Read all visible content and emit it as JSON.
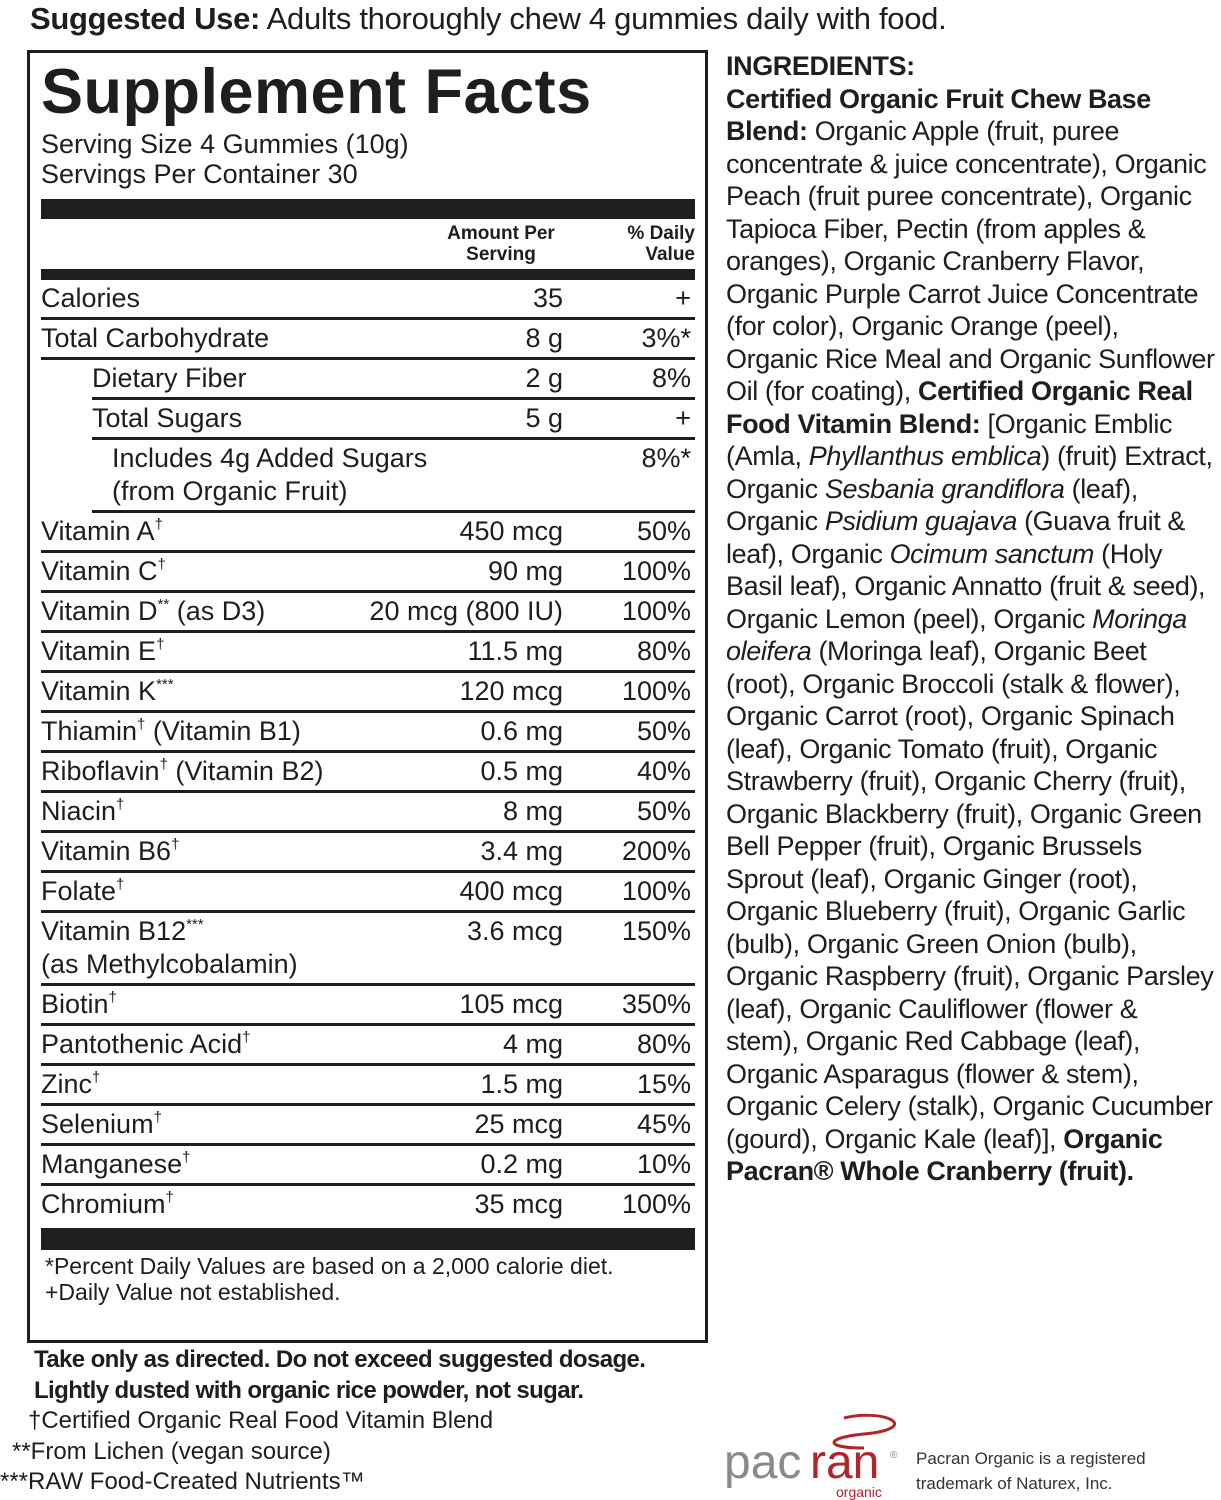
{
  "suggested_use": {
    "label": "Suggested Use:",
    "text": " Adults thoroughly chew 4 gummies daily with food."
  },
  "facts": {
    "title": "Supplement Facts",
    "serving_size": "Serving Size 4 Gummies (10g)",
    "servings_per_container": "Servings Per Container 30",
    "header_amount": "Amount Per Serving",
    "header_dv": "% Daily Value",
    "rows": [
      {
        "name": "Calories",
        "sup": "",
        "amount": "35",
        "dv": "+",
        "indent": 0
      },
      {
        "name": "Total Carbohydrate",
        "sup": "",
        "amount": "8 g",
        "dv": "3%*",
        "indent": 0
      },
      {
        "name": "Dietary Fiber",
        "sup": "",
        "amount": "2 g",
        "dv": "8%",
        "indent": 1
      },
      {
        "name": "Total Sugars",
        "sup": "",
        "amount": "5 g",
        "dv": "+",
        "indent": 1
      },
      {
        "name": "Includes 4g Added Sugars",
        "sub": "(from Organic Fruit)",
        "sup": "",
        "amount": "",
        "dv": "8%*",
        "indent": 2
      },
      {
        "name": "Vitamin A",
        "sup": "†",
        "amount": "450 mcg",
        "dv": "50%",
        "indent": 0
      },
      {
        "name": "Vitamin C",
        "sup": "†",
        "amount": "90 mg",
        "dv": "100%",
        "indent": 0
      },
      {
        "name": "Vitamin D",
        "sup": "**",
        "after": " (as D3)",
        "amount": "20 mcg (800 IU)",
        "dv": "100%",
        "indent": 0
      },
      {
        "name": "Vitamin E",
        "sup": "†",
        "amount": "11.5 mg",
        "dv": "80%",
        "indent": 0
      },
      {
        "name": "Vitamin K",
        "sup": "***",
        "amount": "120 mcg",
        "dv": "100%",
        "indent": 0
      },
      {
        "name": "Thiamin",
        "sup": "†",
        "after": " (Vitamin B1)",
        "amount": "0.6 mg",
        "dv": "50%",
        "indent": 0
      },
      {
        "name": "Riboflavin",
        "sup": "†",
        "after": " (Vitamin B2)",
        "amount": "0.5 mg",
        "dv": "40%",
        "indent": 0
      },
      {
        "name": "Niacin",
        "sup": "†",
        "amount": "8 mg",
        "dv": "50%",
        "indent": 0
      },
      {
        "name": "Vitamin B6",
        "sup": "†",
        "amount": "3.4 mg",
        "dv": "200%",
        "indent": 0
      },
      {
        "name": "Folate",
        "sup": "†",
        "amount": "400 mcg",
        "dv": "100%",
        "indent": 0
      },
      {
        "name": "Vitamin B12",
        "sup": "***",
        "sub": "(as Methylcobalamin)",
        "amount": "3.6 mcg",
        "dv": "150%",
        "indent": 0
      },
      {
        "name": "Biotin",
        "sup": "†",
        "amount": "105 mcg",
        "dv": "350%",
        "indent": 0
      },
      {
        "name": "Pantothenic Acid",
        "sup": "†",
        "amount": "4 mg",
        "dv": "80%",
        "indent": 0
      },
      {
        "name": "Zinc",
        "sup": "†",
        "amount": "1.5 mg",
        "dv": "15%",
        "indent": 0
      },
      {
        "name": "Selenium",
        "sup": "†",
        "amount": "25 mcg",
        "dv": "45%",
        "indent": 0
      },
      {
        "name": "Manganese",
        "sup": "†",
        "amount": "0.2 mg",
        "dv": "10%",
        "indent": 0
      },
      {
        "name": "Chromium",
        "sup": "†",
        "amount": "35 mcg",
        "dv": "100%",
        "indent": 0
      }
    ],
    "footnote1": "*Percent Daily Values are based on a 2,000 calorie diet.",
    "footnote2": "+Daily Value not established."
  },
  "notes": {
    "warning1": "Take only as directed. Do not exceed suggested dosage.",
    "warning2": "Lightly dusted with organic rice powder, not sugar.",
    "n1": "†Certified Organic Real Food Vitamin Blend",
    "n2": "**From Lichen (vegan source)",
    "n3": "***RAW Food-Created Nutrients™"
  },
  "ingredients": [
    {
      "t": "INGREDIENTS:",
      "s": "h"
    },
    {
      "t": "Certified Organic Fruit Chew Base Blend:",
      "s": "b"
    },
    {
      "t": " Organic Apple (fruit, puree concentrate & juice concentrate), Organic Peach (fruit puree concentrate), Organic Tapioca Fiber, Pectin (from apples & oranges), Organic Cranberry Flavor, Organic Purple Carrot Juice Concentrate (for color), Organic Orange (peel), Organic Rice Meal and Organic Sunflower Oil (for coating), ",
      "s": ""
    },
    {
      "t": "Certified Organic Real Food Vitamin Blend:",
      "s": "b"
    },
    {
      "t": " [Organic Emblic (Amla, ",
      "s": ""
    },
    {
      "t": "Phyllanthus emblica",
      "s": "i"
    },
    {
      "t": ") (fruit) Extract, Organic ",
      "s": ""
    },
    {
      "t": "Sesbania grandiflora",
      "s": "i"
    },
    {
      "t": " (leaf), Organic ",
      "s": ""
    },
    {
      "t": "Psidium guajava",
      "s": "i"
    },
    {
      "t": " (Guava fruit & leaf), Organic ",
      "s": ""
    },
    {
      "t": "Ocimum sanctum",
      "s": "i"
    },
    {
      "t": " (Holy Basil leaf), Organic Annatto (fruit & seed), Organic Lemon (peel), Organic ",
      "s": ""
    },
    {
      "t": "Moringa oleifera",
      "s": "i"
    },
    {
      "t": " (Moringa leaf), Organic Beet (root), Organic Broccoli (stalk & flower), Organic Carrot (root), Organic Spinach (leaf), Organic Tomato (fruit), Organic Strawberry (fruit), Organic Cherry (fruit), Organic Blackberry (fruit), Organic Green Bell Pepper (fruit), Organic Brussels Sprout (leaf), Organic Ginger (root), Organic Blueberry (fruit), Organic Garlic (bulb), Organic Green Onion (bulb), Organic Raspberry (fruit), Organic Parsley (leaf), Organic Cauliflower (flower & stem), Organic Red Cabbage (leaf), Organic Asparagus (flower & stem), Organic Celery (stalk), Organic Cucumber (gourd), Organic Kale (leaf)], ",
      "s": ""
    },
    {
      "t": "Organic Pacran® Whole Cranberry (fruit).",
      "s": "b"
    }
  ],
  "logo": {
    "word1": "pac",
    "word2": "ran",
    "sub": "organic",
    "reg": "®",
    "colors": {
      "gray": "#8a8a8a",
      "red": "#b0242c"
    }
  },
  "trademark": {
    "line1": "Pacran Organic is a registered",
    "line2": "trademark of Naturex, Inc."
  }
}
